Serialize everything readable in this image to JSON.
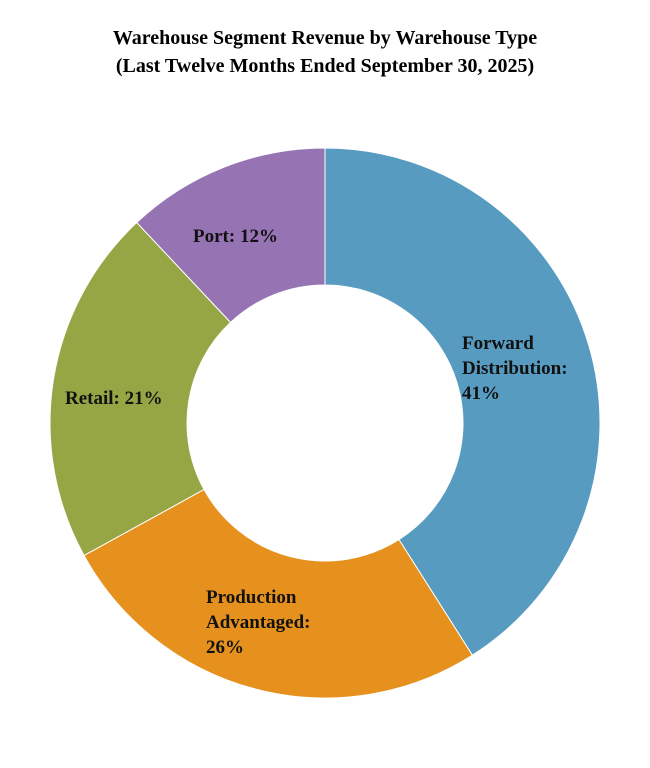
{
  "title": {
    "line1": "Warehouse Segment Revenue by Warehouse Type",
    "line2": "(Last Twelve Months Ended September 30, 2025)"
  },
  "chart_data": {
    "type": "pie",
    "subtype": "donut",
    "title": "Warehouse Segment Revenue by Warehouse Type (Last Twelve Months Ended September 30, 2025)",
    "categories": [
      "Forward Distribution",
      "Production Advantaged",
      "Retail",
      "Port"
    ],
    "values": [
      41,
      26,
      21,
      12
    ],
    "unit": "%",
    "colors": [
      "#579bc0",
      "#e6911e",
      "#96a645",
      "#9673b3"
    ],
    "labels": [
      "Forward Distribution: 41%",
      "Production Advantaged: 26%",
      "Retail: 21%",
      "Port: 12%"
    ],
    "legend": "none (data labels on slices)",
    "start_angle": "12 o'clock, clockwise"
  },
  "labels": {
    "forward": [
      "Forward",
      "Distribution:",
      "41%"
    ],
    "production": [
      "Production",
      "Advantaged:",
      "26%"
    ],
    "retail": [
      "Retail: 21%"
    ],
    "port": [
      "Port: 12%"
    ]
  }
}
